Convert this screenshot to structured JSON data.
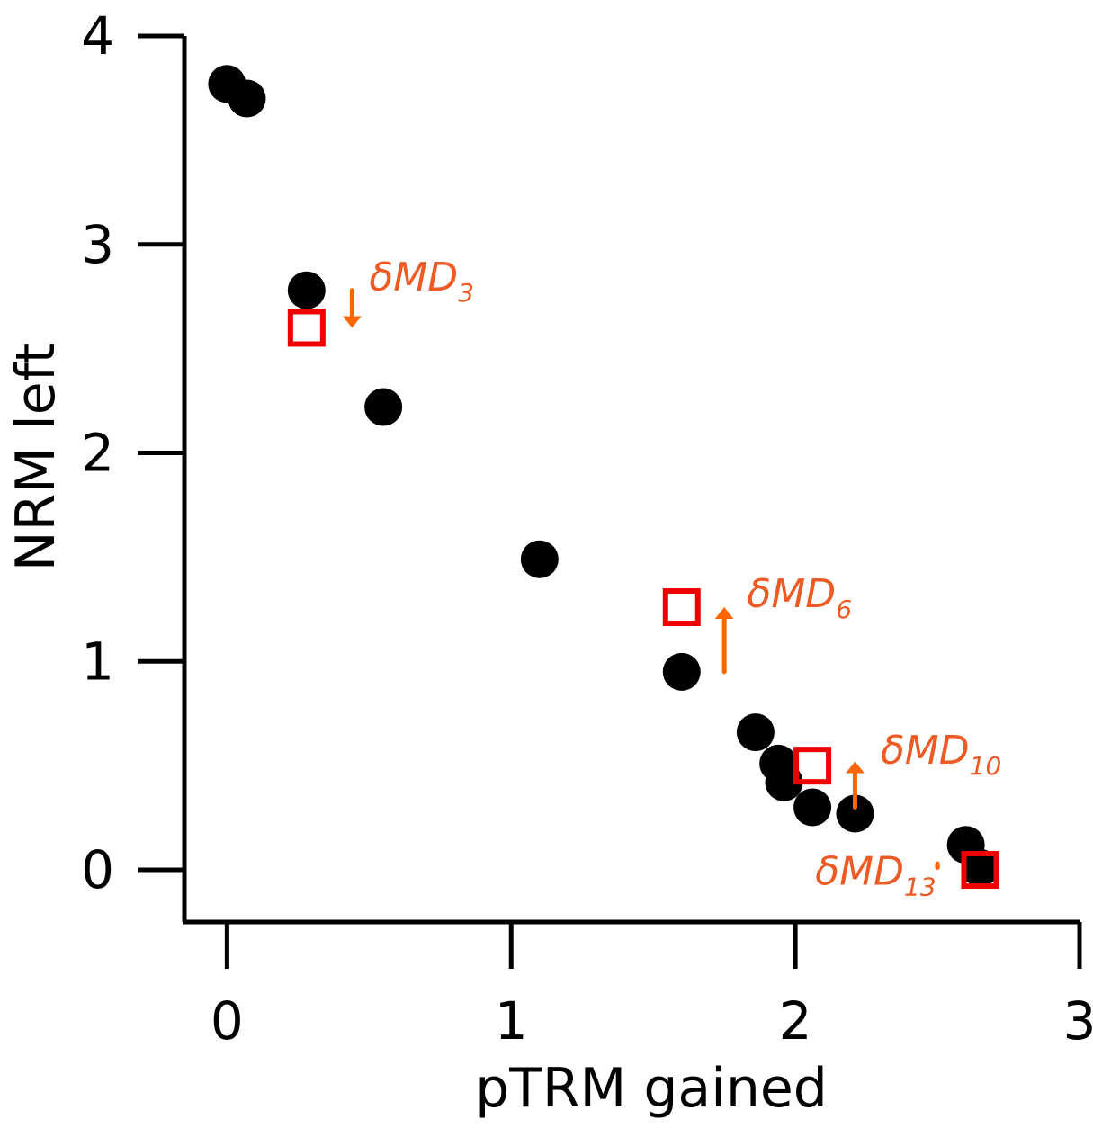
{
  "chart_data": {
    "type": "scatter",
    "xlabel": "pTRM gained",
    "ylabel": "NRM left",
    "xlim": [
      -0.15,
      3.0
    ],
    "ylim": [
      -0.25,
      4.0
    ],
    "x_ticks": [
      0,
      1,
      2,
      3
    ],
    "y_ticks": [
      0,
      1,
      2,
      3,
      4
    ],
    "grid": false,
    "series": [
      {
        "marker": "filled-circle",
        "color": "#000000",
        "points": [
          {
            "x": 0.0,
            "y": 3.77
          },
          {
            "x": 0.07,
            "y": 3.7
          },
          {
            "x": 0.28,
            "y": 2.78
          },
          {
            "x": 0.55,
            "y": 2.22
          },
          {
            "x": 1.1,
            "y": 1.49
          },
          {
            "x": 1.6,
            "y": 0.95
          },
          {
            "x": 1.86,
            "y": 0.66
          },
          {
            "x": 1.94,
            "y": 0.51
          },
          {
            "x": 1.96,
            "y": 0.42
          },
          {
            "x": 2.06,
            "y": 0.3
          },
          {
            "x": 2.21,
            "y": 0.27
          },
          {
            "x": 2.6,
            "y": 0.12
          },
          {
            "x": 2.65,
            "y": 0.01
          }
        ]
      },
      {
        "marker": "open-square",
        "color": "#ee0000",
        "points": [
          {
            "x": 0.28,
            "y": 2.6
          },
          {
            "x": 1.6,
            "y": 1.26
          },
          {
            "x": 2.06,
            "y": 0.5
          },
          {
            "x": 2.65,
            "y": 0.0
          }
        ]
      }
    ],
    "arrows": [
      {
        "x": 0.44,
        "y_from": 2.78,
        "y_to": 2.6,
        "color": "#ff6600"
      },
      {
        "x": 1.75,
        "y_from": 0.95,
        "y_to": 1.26,
        "color": "#ff6600"
      },
      {
        "x": 2.21,
        "y_from": 0.3,
        "y_to": 0.52,
        "color": "#ff6600"
      },
      {
        "x": 2.5,
        "y_from": 0.03,
        "y_to": 0.0,
        "color": "#ff6600"
      }
    ],
    "annotations": [
      {
        "base": "δMD",
        "sub": "3",
        "x": 0.5,
        "y": 2.78
      },
      {
        "base": "δMD",
        "sub": "6",
        "x": 1.83,
        "y": 1.26
      },
      {
        "base": "δMD",
        "sub": "10",
        "x": 2.3,
        "y": 0.51
      },
      {
        "base": "δMD",
        "sub": "13",
        "x": 2.07,
        "y": -0.07
      }
    ]
  }
}
